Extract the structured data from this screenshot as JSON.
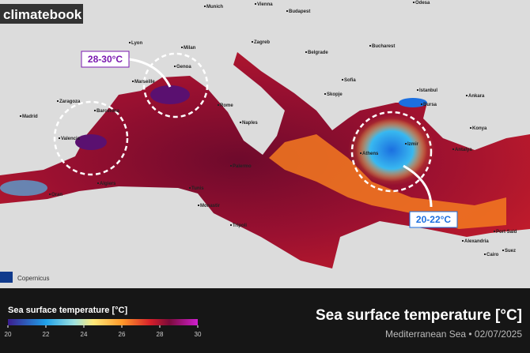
{
  "branding": "climatebook",
  "partner": "Copernicus",
  "cities": [
    "Munich",
    "Vienna",
    "Budapest",
    "Odesa",
    "Zagreb",
    "Belgrade",
    "Bucharest",
    "Lyon",
    "Milan",
    "Genoa",
    "Marseille",
    "Sofia",
    "Istanbul",
    "Bursa",
    "Ankara",
    "Madrid",
    "Zaragoza",
    "Barcelona",
    "Valencia",
    "Rome",
    "Naples",
    "Skopje",
    "Izmir",
    "Konya",
    "Antalya",
    "Athens",
    "Palermo",
    "Tunis",
    "Algiers",
    "Oran",
    "Monastir",
    "Tripoli",
    "Alexandria",
    "Port Said",
    "Suez",
    "Cairo"
  ],
  "callouts": [
    "28-30°C",
    "20-22°C"
  ],
  "legend": {
    "title": "Sea surface temperature [°C]",
    "ticks": [
      20,
      22,
      24,
      26,
      28,
      30
    ]
  },
  "title": "Sea surface temperature [°C]",
  "subtitle": "Mediterranean Sea • 02/07/2025"
}
